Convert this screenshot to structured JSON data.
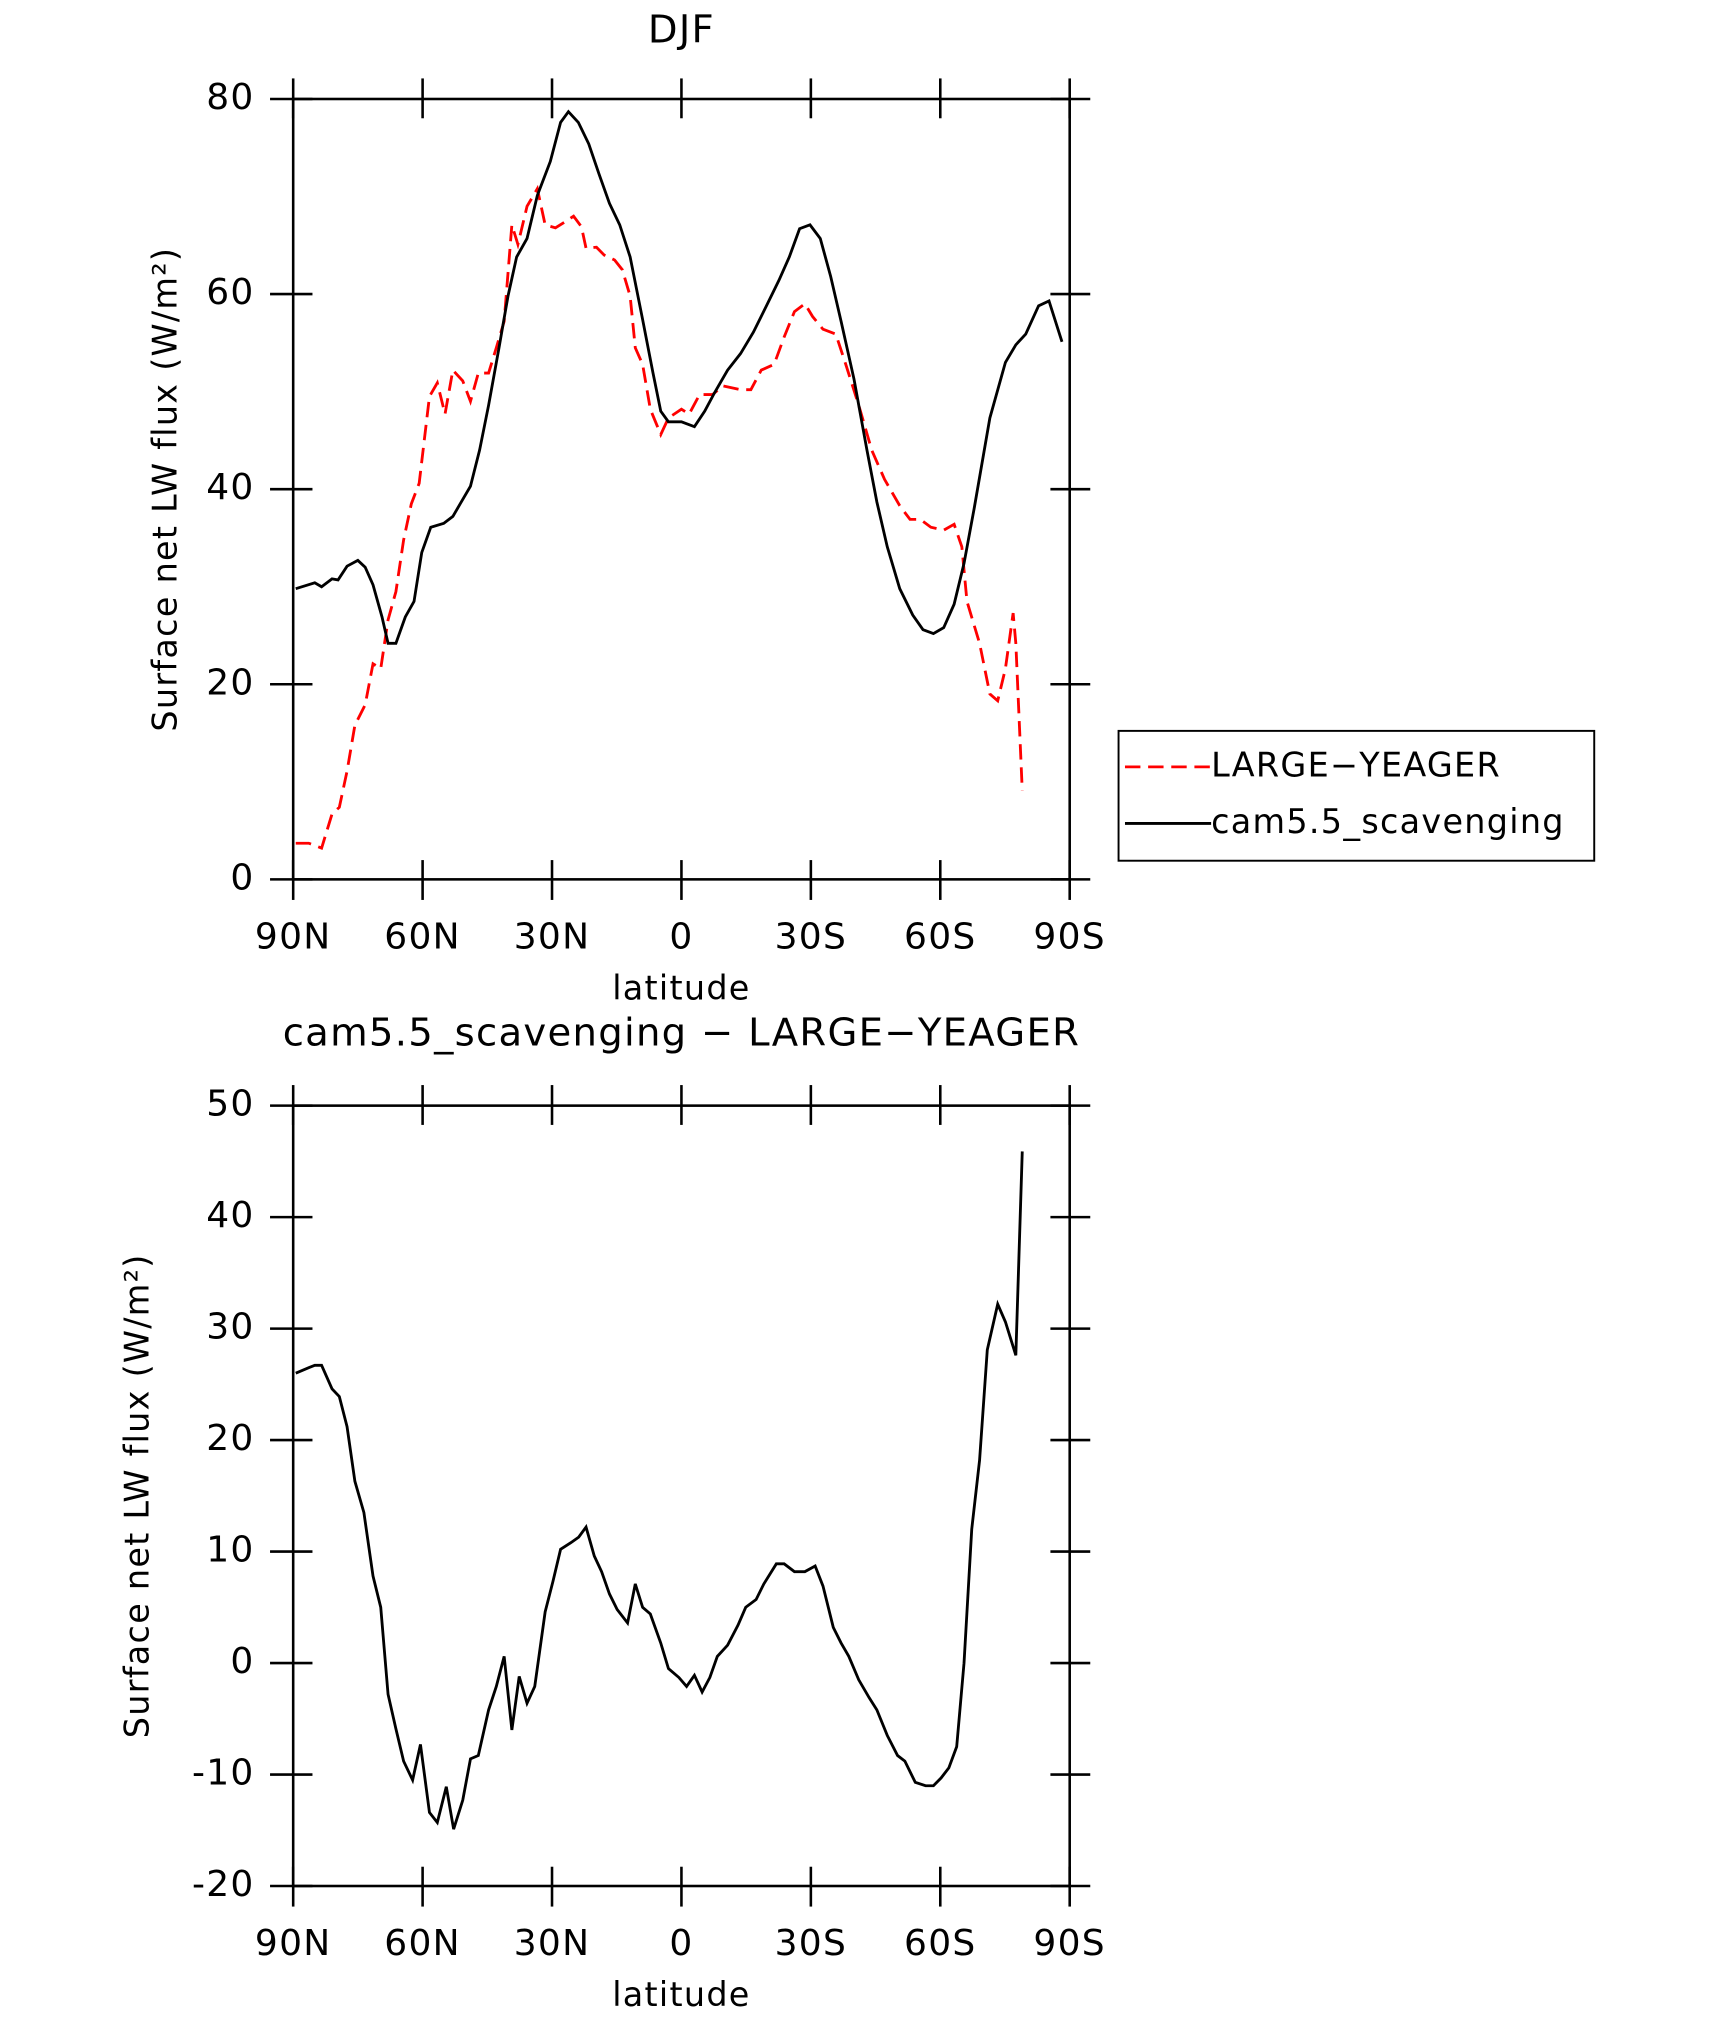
{
  "chart_data": [
    {
      "type": "line",
      "title": "DJF",
      "xlabel": "latitude",
      "ylabel": "Surface net LW flux (W/m²)",
      "xlim": [
        90,
        -90
      ],
      "xticks": [
        {
          "value": 90,
          "label": "90N"
        },
        {
          "value": 60,
          "label": "60N"
        },
        {
          "value": 30,
          "label": "30N"
        },
        0,
        {
          "value": -30,
          "label": "30S"
        },
        {
          "value": -60,
          "label": "60S"
        },
        {
          "value": -90,
          "label": "90S"
        }
      ],
      "ylim": [
        0,
        80
      ],
      "yticks": [
        0,
        20,
        40,
        60,
        80
      ],
      "legend": "right",
      "series": [
        {
          "name": "LARGE−YEAGER",
          "color": "#ff0000",
          "dash": true,
          "x": [
            89.4,
            86.4,
            83.4,
            81,
            79.3,
            77.5,
            75.7,
            73.3,
            71.5,
            69.7,
            68,
            66.2,
            64.4,
            62.6,
            60.8,
            58.4,
            56.6,
            54.8,
            53,
            50.7,
            48.9,
            47.1,
            44.7,
            42.9,
            41.1,
            39.3,
            37.9,
            35.8,
            33.4,
            31.6,
            29.2,
            27.4,
            25,
            23.2,
            22.1,
            19.7,
            17.9,
            15.5,
            13.7,
            11.9,
            10.7,
            9,
            7.2,
            4.8,
            3,
            0,
            -1.8,
            -4.2,
            -7.2,
            -9.6,
            -13.7,
            -16.1,
            -18.5,
            -21.5,
            -23.8,
            -26.2,
            -28.6,
            -30.4,
            -32.8,
            -35.8,
            -38.1,
            -41.1,
            -44.1,
            -47.1,
            -50.6,
            -53,
            -55.4,
            -57.8,
            -60.8,
            -63.2,
            -65,
            -66.2,
            -69.1,
            -71.5,
            -73.3,
            -75.1,
            -76.9,
            -77.5,
            -79
          ],
          "values": [
            3.7,
            3.7,
            3.2,
            6.7,
            7.4,
            11.1,
            15.8,
            17.9,
            22.1,
            21.6,
            26.6,
            29.5,
            34.8,
            38.5,
            40.6,
            49.5,
            50.9,
            47.7,
            52.2,
            51.1,
            49,
            51.9,
            51.9,
            54.5,
            57.2,
            67.1,
            65.1,
            69,
            70.8,
            67.1,
            66.8,
            67.3,
            68,
            66.9,
            64.7,
            64.8,
            64,
            63.5,
            62.5,
            59.8,
            54.5,
            52.8,
            48.2,
            45.6,
            47.3,
            48.2,
            47.7,
            49.7,
            49.7,
            50.6,
            50.2,
            50.2,
            52.2,
            52.8,
            55.6,
            58.2,
            59,
            57.7,
            56.4,
            55.9,
            52.8,
            48.6,
            44,
            41,
            38.3,
            36.9,
            36.9,
            36.1,
            35.8,
            36.4,
            34.1,
            28.5,
            24.2,
            19,
            18.3,
            21.6,
            27.3,
            24.2,
            9.1
          ]
        },
        {
          "name": "cam5.5_scavenging",
          "color": "#000000",
          "dash": false,
          "x": [
            89.4,
            85,
            83.4,
            81,
            79.6,
            77.5,
            75,
            73.3,
            71.5,
            69.4,
            68,
            66.2,
            64,
            62,
            60.2,
            58.1,
            55.1,
            53,
            51.3,
            48.9,
            46.8,
            44.7,
            42.3,
            40.2,
            38.2,
            35.8,
            33.4,
            30.4,
            28,
            26.2,
            23.9,
            21.5,
            19.1,
            16.7,
            14.3,
            11.9,
            9,
            6.6,
            4.8,
            3,
            0,
            -3,
            -5.4,
            -7.7,
            -10.7,
            -13.7,
            -16.7,
            -19.7,
            -22.6,
            -25,
            -27.4,
            -29.8,
            -32.2,
            -34.6,
            -37,
            -40,
            -43,
            -45.3,
            -47.7,
            -50.6,
            -53.6,
            -56,
            -58.4,
            -60.8,
            -63.2,
            -65.5,
            -67.9,
            -71.5,
            -75.1,
            -77.5,
            -79.8,
            -82.8,
            -85.2,
            -88.2
          ],
          "values": [
            29.8,
            30.4,
            30,
            30.8,
            30.7,
            32.1,
            32.7,
            32,
            30.2,
            26.9,
            24.2,
            24.2,
            26.9,
            28.5,
            33.5,
            36.1,
            36.5,
            37.2,
            38.5,
            40.3,
            44,
            48.6,
            54.5,
            59.8,
            63.8,
            65.7,
            70.1,
            73.6,
            77.6,
            78.7,
            77.6,
            75.4,
            72.3,
            69.3,
            67.1,
            63.8,
            57.4,
            51.9,
            48,
            46.9,
            46.9,
            46.4,
            48,
            49.9,
            52.2,
            53.9,
            56.1,
            58.8,
            61.4,
            63.8,
            66.7,
            67.1,
            65.7,
            61.8,
            57.2,
            51.3,
            44,
            38.7,
            34.1,
            29.8,
            27.1,
            25.6,
            25.2,
            25.8,
            28.2,
            32.4,
            38.1,
            47.3,
            53,
            54.8,
            55.9,
            58.8,
            59.3,
            55.1
          ]
        }
      ]
    },
    {
      "type": "line",
      "title": "cam5.5_scavenging − LARGE−YEAGER",
      "xlabel": "latitude",
      "ylabel": "Surface net LW flux (W/m²)",
      "xlim": [
        90,
        -90
      ],
      "xticks": [
        {
          "value": 90,
          "label": "90N"
        },
        {
          "value": 60,
          "label": "60N"
        },
        {
          "value": 30,
          "label": "30N"
        },
        0,
        {
          "value": -30,
          "label": "30S"
        },
        {
          "value": -60,
          "label": "60S"
        },
        {
          "value": -90,
          "label": "90S"
        }
      ],
      "ylim": [
        -20,
        50
      ],
      "yticks": [
        -20,
        -10,
        0,
        10,
        20,
        30,
        40,
        50
      ],
      "series": [
        {
          "color": "#000000",
          "dash": false,
          "x": [
            89.4,
            86.4,
            85,
            83.4,
            81,
            79.3,
            77.5,
            75.7,
            73.6,
            71.5,
            69.7,
            68,
            66.2,
            64.4,
            62.3,
            60.5,
            58.4,
            56.6,
            54.5,
            52.8,
            50.7,
            48.9,
            47.1,
            44.7,
            42.9,
            41.1,
            39.3,
            37.6,
            35.8,
            34,
            31.6,
            29.8,
            28,
            25.6,
            23.8,
            22.1,
            20.2,
            18.5,
            16.7,
            14.9,
            12.5,
            10.7,
            9,
            7.2,
            4.8,
            3,
            0.6,
            -1.2,
            -3,
            -4.8,
            -6.6,
            -8.3,
            -10.7,
            -13.1,
            -14.9,
            -17.3,
            -19.1,
            -22,
            -23.8,
            -26.2,
            -28.6,
            -31,
            -32.8,
            -35.2,
            -37,
            -38.8,
            -41.1,
            -43.5,
            -45.3,
            -47.7,
            -50.1,
            -51.8,
            -54.2,
            -56.6,
            -58.4,
            -60.2,
            -62,
            -63.8,
            -65.5,
            -67.3,
            -69.1,
            -70.9,
            -73.3,
            -75.1,
            -77.5,
            -79
          ],
          "values": [
            26,
            26.5,
            26.7,
            26.7,
            24.6,
            23.9,
            21.2,
            16.3,
            13.5,
            7.8,
            5,
            -2.8,
            -5.9,
            -8.8,
            -10.5,
            -7.3,
            -13.4,
            -14.3,
            -11.1,
            -14.9,
            -12.3,
            -8.6,
            -8.3,
            -4.2,
            -2.1,
            0.6,
            -6,
            -1.2,
            -3.6,
            -2.1,
            4.6,
            7.3,
            10.2,
            10.8,
            11.3,
            12.2,
            9.6,
            8.2,
            6.2,
            4.8,
            3.6,
            7.1,
            5,
            4.4,
            1.8,
            -0.5,
            -1.3,
            -2.1,
            -1.1,
            -2.6,
            -1.3,
            0.6,
            1.6,
            3.4,
            5,
            5.7,
            7.1,
            8.9,
            8.9,
            8.2,
            8.2,
            8.7,
            6.9,
            3.2,
            1.8,
            0.6,
            -1.5,
            -3.1,
            -4.2,
            -6.5,
            -8.3,
            -8.8,
            -10.7,
            -11,
            -11,
            -10.3,
            -9.4,
            -7.5,
            0,
            12,
            18.2,
            28.1,
            32.2,
            30.6,
            27.6,
            45.9
          ]
        }
      ]
    }
  ]
}
